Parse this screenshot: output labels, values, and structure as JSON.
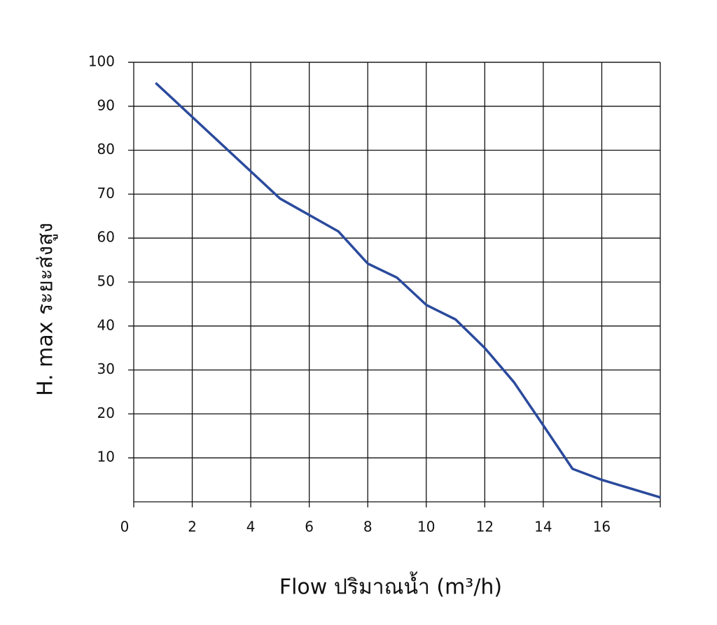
{
  "chart_data": {
    "type": "line",
    "x_label": "Flow  ปริมาณน้ำ (m³/h)",
    "y_label": "H. max  ระยะส่งสูง",
    "x": [
      0.75,
      5,
      7,
      8,
      9,
      10,
      11,
      12,
      13,
      14,
      15,
      16,
      18
    ],
    "series": [
      {
        "color": "#2a4a9c",
        "values": [
          95.3,
          69,
          61.5,
          54.2,
          51,
          44.8,
          41.5,
          35,
          27.2,
          17.4,
          7.5,
          5,
          1
        ]
      }
    ],
    "xlim": [
      0,
      18
    ],
    "xticks": [
      0,
      2,
      4,
      6,
      8,
      10,
      12,
      14,
      16
    ],
    "ylim": [
      0,
      100
    ],
    "yticks": [
      10,
      20,
      30,
      40,
      50,
      60,
      70,
      80,
      90,
      100
    ],
    "grid": true
  }
}
